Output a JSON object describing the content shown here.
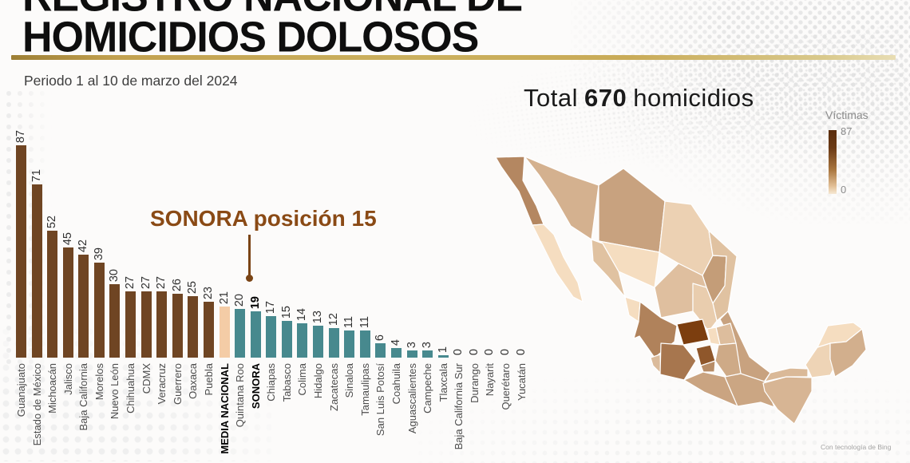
{
  "header": {
    "title_line1": "REGISTRO NACIONAL DE",
    "title_line2": "HOMICIDIOS DOLOSOS",
    "period": "Periodo 1 al 10 de marzo del 2024"
  },
  "total": {
    "prefix": "Total",
    "number": "670",
    "suffix": "homicidios"
  },
  "annotation": {
    "text": "SONORA posición 15",
    "accent_color": "#8A4A15"
  },
  "chart_data": {
    "type": "bar",
    "orientation": "vertical",
    "ylim": [
      0,
      87
    ],
    "bar_colors": {
      "top": "#6F4523",
      "media": "#F4CCA6",
      "below": "#47898E"
    },
    "entries": [
      {
        "label": "Guanajuato",
        "value": 87,
        "group": "top"
      },
      {
        "label": "Estado de México",
        "value": 71,
        "group": "top"
      },
      {
        "label": "Michoacán",
        "value": 52,
        "group": "top"
      },
      {
        "label": "Jalisco",
        "value": 45,
        "group": "top"
      },
      {
        "label": "Baja California",
        "value": 42,
        "group": "top"
      },
      {
        "label": "Morelos",
        "value": 39,
        "group": "top"
      },
      {
        "label": "Nuevo León",
        "value": 30,
        "group": "top"
      },
      {
        "label": "Chihuahua",
        "value": 27,
        "group": "top"
      },
      {
        "label": "CDMX",
        "value": 27,
        "group": "top"
      },
      {
        "label": "Veracruz",
        "value": 27,
        "group": "top"
      },
      {
        "label": "Guerrero",
        "value": 26,
        "group": "top"
      },
      {
        "label": "Oaxaca",
        "value": 25,
        "group": "top"
      },
      {
        "label": "Puebla",
        "value": 23,
        "group": "top"
      },
      {
        "label": "MEDIA NACIONAL",
        "value": 21,
        "group": "media",
        "bold_label": true
      },
      {
        "label": "Quintana Roo",
        "value": 20,
        "group": "below"
      },
      {
        "label": "SONORA",
        "value": 19,
        "group": "below",
        "bold_label": true,
        "bold_value": true
      },
      {
        "label": "Chiapas",
        "value": 17,
        "group": "below"
      },
      {
        "label": "Tabasco",
        "value": 15,
        "group": "below"
      },
      {
        "label": "Colima",
        "value": 14,
        "group": "below"
      },
      {
        "label": "Hidalgo",
        "value": 13,
        "group": "below"
      },
      {
        "label": "Zacatecas",
        "value": 12,
        "group": "below"
      },
      {
        "label": "Sinaloa",
        "value": 11,
        "group": "below"
      },
      {
        "label": "Tamaulipas",
        "value": 11,
        "group": "below"
      },
      {
        "label": "San Luis Potosí",
        "value": 6,
        "group": "below"
      },
      {
        "label": "Coahuila",
        "value": 4,
        "group": "below"
      },
      {
        "label": "Aguascalientes",
        "value": 3,
        "group": "below"
      },
      {
        "label": "Campeche",
        "value": 3,
        "group": "below"
      },
      {
        "label": "Tlaxcala",
        "value": 1,
        "group": "below"
      },
      {
        "label": "Baja California Sur",
        "value": 0,
        "group": "below"
      },
      {
        "label": "Durango",
        "value": 0,
        "group": "below"
      },
      {
        "label": "Nayarit",
        "value": 0,
        "group": "below"
      },
      {
        "label": "Querétaro",
        "value": 0,
        "group": "below"
      },
      {
        "label": "Yucatán",
        "value": 0,
        "group": "below"
      }
    ]
  },
  "map": {
    "legend_title": "Víctimas",
    "legend_max": "87",
    "legend_min": "0",
    "color_low": "#F5DDC0",
    "color_high": "#7C3E0F",
    "attribution": "Con tecnología de Bing",
    "values": {
      "Baja California": 42,
      "Baja California Sur": 0,
      "Sonora": 19,
      "Chihuahua": 27,
      "Coahuila": 4,
      "Nuevo León": 30,
      "Tamaulipas": 11,
      "Sinaloa": 11,
      "Durango": 0,
      "Zacatecas": 12,
      "San Luis Potosí": 6,
      "Nayarit": 0,
      "Jalisco": 45,
      "Colima": 14,
      "Guanajuato": 87,
      "Querétaro": 0,
      "Hidalgo": 13,
      "Michoacán": 52,
      "Estado de México": 71,
      "Morelos": 39,
      "Puebla": 23,
      "Veracruz": 27,
      "Guerrero": 26,
      "Oaxaca": 25,
      "Chiapas": 17,
      "Tabasco": 15,
      "Campeche": 3,
      "Yucatán": 0,
      "Quintana Roo": 20
    }
  }
}
